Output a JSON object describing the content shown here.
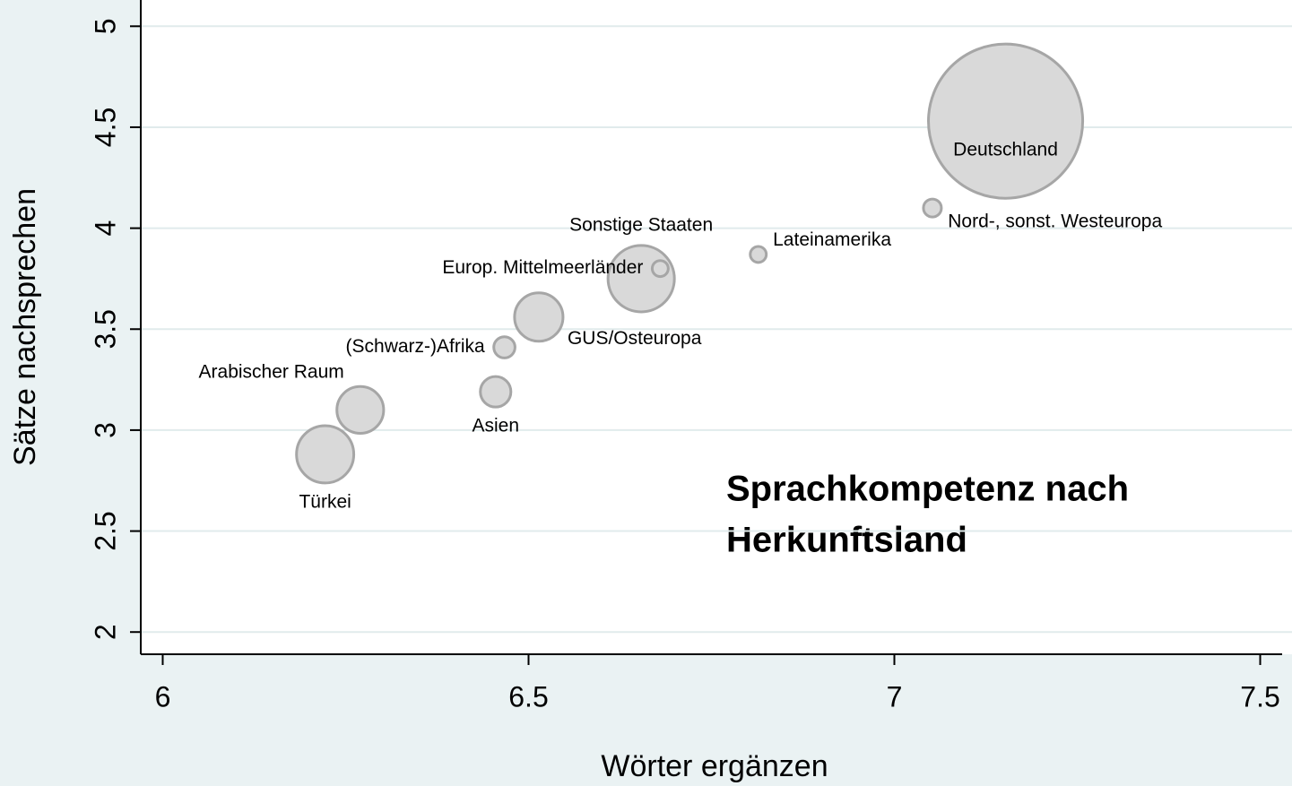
{
  "chart_data": {
    "type": "bubble",
    "xlabel": "Wörter ergänzen",
    "ylabel": "Sätze nachsprechen",
    "annotation": [
      "Sprachkompetenz nach",
      "Herkunftsland"
    ],
    "categories": [
      "Türkei",
      "Arabischer Raum",
      "Asien",
      "(Schwarz-)Afrika",
      "GUS/Osteuropa",
      "Sonstige Staaten",
      "Europ. Mittelmeerländer",
      "Lateinamerika",
      "Nord-, sonst. Westeuropa",
      "Deutschland"
    ],
    "x": [
      6.222,
      6.27,
      6.455,
      6.467,
      6.514,
      6.654,
      6.68,
      6.814,
      7.052,
      7.152
    ],
    "values": [
      2.88,
      3.1,
      3.19,
      3.41,
      3.56,
      3.75,
      3.8,
      3.87,
      4.1,
      4.53
    ],
    "sizes": [
      10.2,
      6.8,
      2.9,
      1.4,
      7.3,
      13.7,
      0.8,
      0.8,
      1.0,
      74
    ],
    "label_positions": [
      6,
      11,
      6,
      9,
      4,
      12,
      9,
      2,
      4,
      0
    ],
    "color": "#d9d9d9",
    "edge_color": "#a6a6a6",
    "xlim": [
      5.97,
      7.53
    ],
    "xticks": [
      6,
      6.5,
      7,
      7.5
    ],
    "ylim": [
      1.89,
      5.13
    ],
    "yticks": [
      2,
      2.5,
      3,
      3.5,
      4,
      4.5,
      5
    ],
    "grid": true
  }
}
